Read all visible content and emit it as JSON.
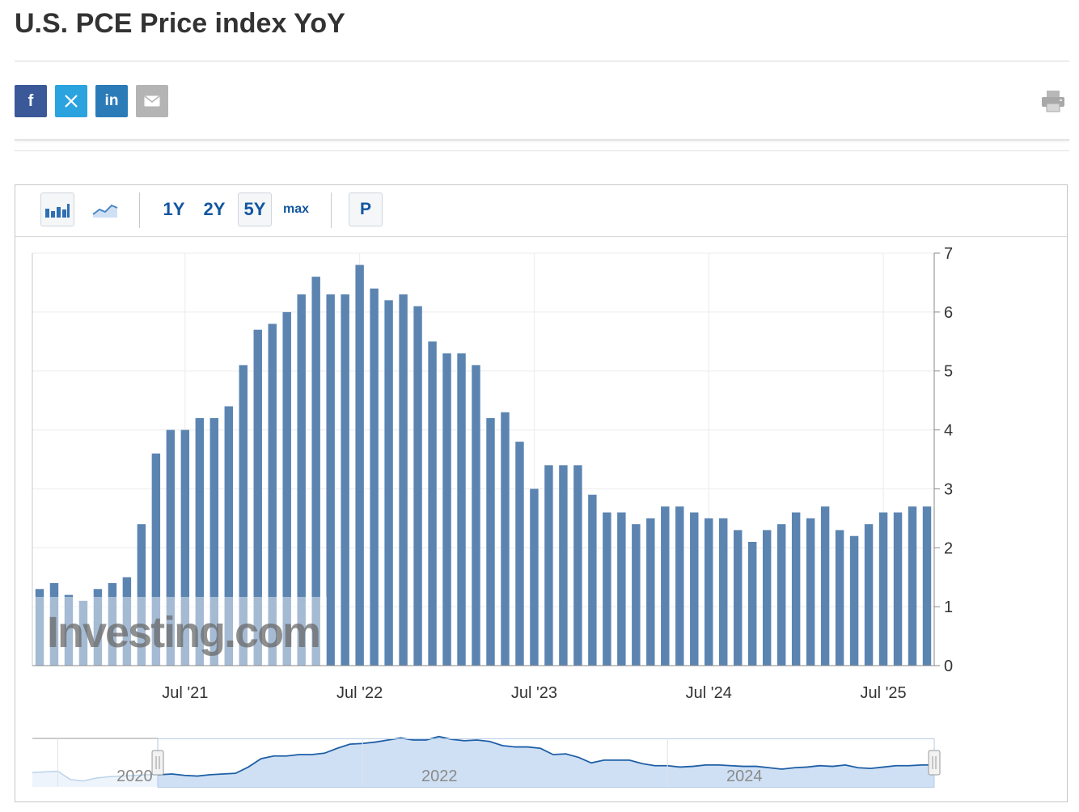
{
  "page": {
    "title": "U.S. PCE Price index YoY"
  },
  "share": {
    "facebook": "f",
    "linkedin": "in"
  },
  "toolbar": {
    "bar_chart_icon": "bar-chart-icon",
    "line_chart_icon": "line-chart-icon",
    "ranges": [
      "1Y",
      "2Y",
      "5Y",
      "max"
    ],
    "selected_range": "5Y",
    "p_label": "P"
  },
  "colors": {
    "bar": "#5b84b1",
    "navigator_line": "#1f5fa5",
    "navigator_fill": "#cfe0f5"
  },
  "chart_data": {
    "type": "bar",
    "title": "",
    "xlabel": "",
    "ylabel": "",
    "ylim": [
      0,
      7
    ],
    "yticks": [
      0,
      1,
      2,
      3,
      4,
      5,
      6,
      7
    ],
    "y_axis_side": "right",
    "x_tick_labels": [
      "Jul '21",
      "Jul '22",
      "Jul '23",
      "Jul '24",
      "Jul '25"
    ],
    "x_tick_months": [
      "2021-07",
      "2022-07",
      "2023-07",
      "2024-07",
      "2025-07"
    ],
    "start_month": "2020-09",
    "categories": [
      "2020-09",
      "2020-10",
      "2020-11",
      "2020-12",
      "2021-01",
      "2021-02",
      "2021-03",
      "2021-04",
      "2021-05",
      "2021-06",
      "2021-07",
      "2021-08",
      "2021-09",
      "2021-10",
      "2021-11",
      "2021-12",
      "2022-01",
      "2022-02",
      "2022-03",
      "2022-04",
      "2022-05",
      "2022-06",
      "2022-07",
      "2022-08",
      "2022-09",
      "2022-10",
      "2022-11",
      "2022-12",
      "2023-01",
      "2023-02",
      "2023-03",
      "2023-04",
      "2023-05",
      "2023-06",
      "2023-07",
      "2023-08",
      "2023-09",
      "2023-10",
      "2023-11",
      "2023-12",
      "2024-01",
      "2024-02",
      "2024-03",
      "2024-04",
      "2024-05",
      "2024-06",
      "2024-07",
      "2024-08",
      "2024-09",
      "2024-10",
      "2024-11",
      "2024-12",
      "2025-01",
      "2025-02",
      "2025-03",
      "2025-04",
      "2025-05",
      "2025-06",
      "2025-07",
      "2025-08",
      "2025-09",
      "2025-10"
    ],
    "values": [
      1.3,
      1.4,
      1.2,
      1.1,
      1.3,
      1.4,
      1.5,
      2.4,
      3.6,
      4.0,
      4.0,
      4.2,
      4.2,
      4.4,
      5.1,
      5.7,
      5.8,
      6.0,
      6.3,
      6.6,
      6.3,
      6.3,
      6.8,
      6.4,
      6.2,
      6.3,
      6.1,
      5.5,
      5.3,
      5.3,
      5.1,
      4.2,
      4.3,
      3.8,
      3.0,
      3.4,
      3.4,
      3.4,
      2.9,
      2.6,
      2.6,
      2.4,
      2.5,
      2.7,
      2.7,
      2.6,
      2.5,
      2.5,
      2.3,
      2.1,
      2.3,
      2.4,
      2.6,
      2.5,
      2.7,
      2.3,
      2.2,
      2.4,
      2.6,
      2.6,
      2.7,
      2.7
    ],
    "navigator": {
      "year_labels": [
        "2020",
        "2022",
        "2024"
      ],
      "year_months": [
        "2020-01",
        "2022-01",
        "2024-01"
      ]
    },
    "watermark": "Investing.com"
  }
}
